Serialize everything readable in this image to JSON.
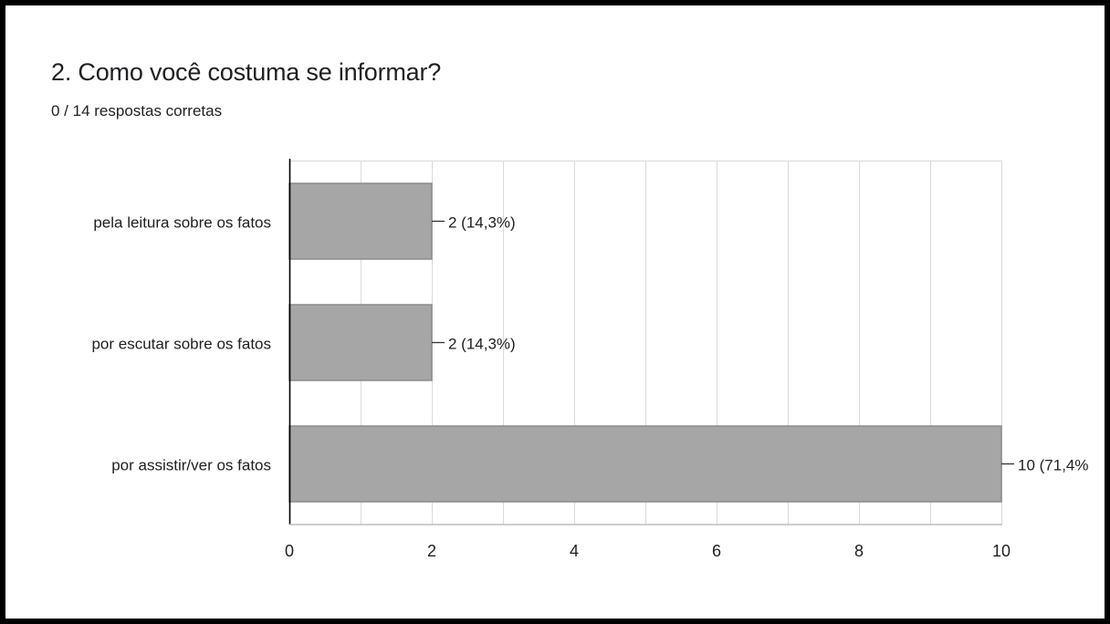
{
  "header": {
    "title": "2. Como você costuma se informar?",
    "subtitle": "0 / 14 respostas corretas"
  },
  "colors": {
    "bar": "#a6a6a6",
    "bar_stroke": "#8c8c8c",
    "grid": "#d9d9d9",
    "axis": "#000000",
    "text": "#202124"
  },
  "chart_data": {
    "type": "bar",
    "orientation": "horizontal",
    "categories": [
      "pela leitura sobre os fatos",
      "por escutar sobre os fatos",
      "por assistir/ver os fatos"
    ],
    "values": [
      2,
      2,
      10
    ],
    "data_labels": [
      "2 (14,3%)",
      "2 (14,3%)",
      "10 (71,4%"
    ],
    "xlim": [
      0,
      10
    ],
    "xticks": [
      0,
      2,
      4,
      6,
      8,
      10
    ],
    "grid": true,
    "legend": "none"
  }
}
